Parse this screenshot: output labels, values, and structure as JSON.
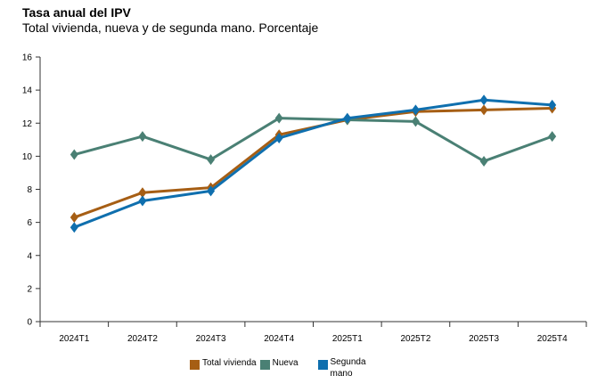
{
  "chart_data": {
    "type": "line",
    "title": "Tasa anual del IPV",
    "subtitle": "Total vivienda, nueva y de segunda mano. Porcentaje",
    "xlabel": "",
    "ylabel": "",
    "categories": [
      "2024T1",
      "2024T2",
      "2024T3",
      "2024T4",
      "2025T1",
      "2025T2",
      "2025T3",
      "2025T4"
    ],
    "ylim": [
      0,
      16
    ],
    "yticks": [
      0,
      2,
      4,
      6,
      8,
      10,
      12,
      14,
      16
    ],
    "grid": false,
    "legend_position": "bottom",
    "series": [
      {
        "name": "Total vivienda",
        "color": "#a65e14",
        "values": [
          6.3,
          7.8,
          8.1,
          11.3,
          12.2,
          12.7,
          12.8,
          12.9
        ]
      },
      {
        "name": "Nueva",
        "color": "#4a8074",
        "values": [
          10.1,
          11.2,
          9.8,
          12.3,
          12.2,
          12.1,
          9.7,
          11.2
        ]
      },
      {
        "name": "Segunda mano",
        "color": "#0f6fae",
        "values": [
          5.7,
          7.3,
          7.9,
          11.1,
          12.3,
          12.8,
          13.4,
          13.1
        ]
      }
    ]
  }
}
